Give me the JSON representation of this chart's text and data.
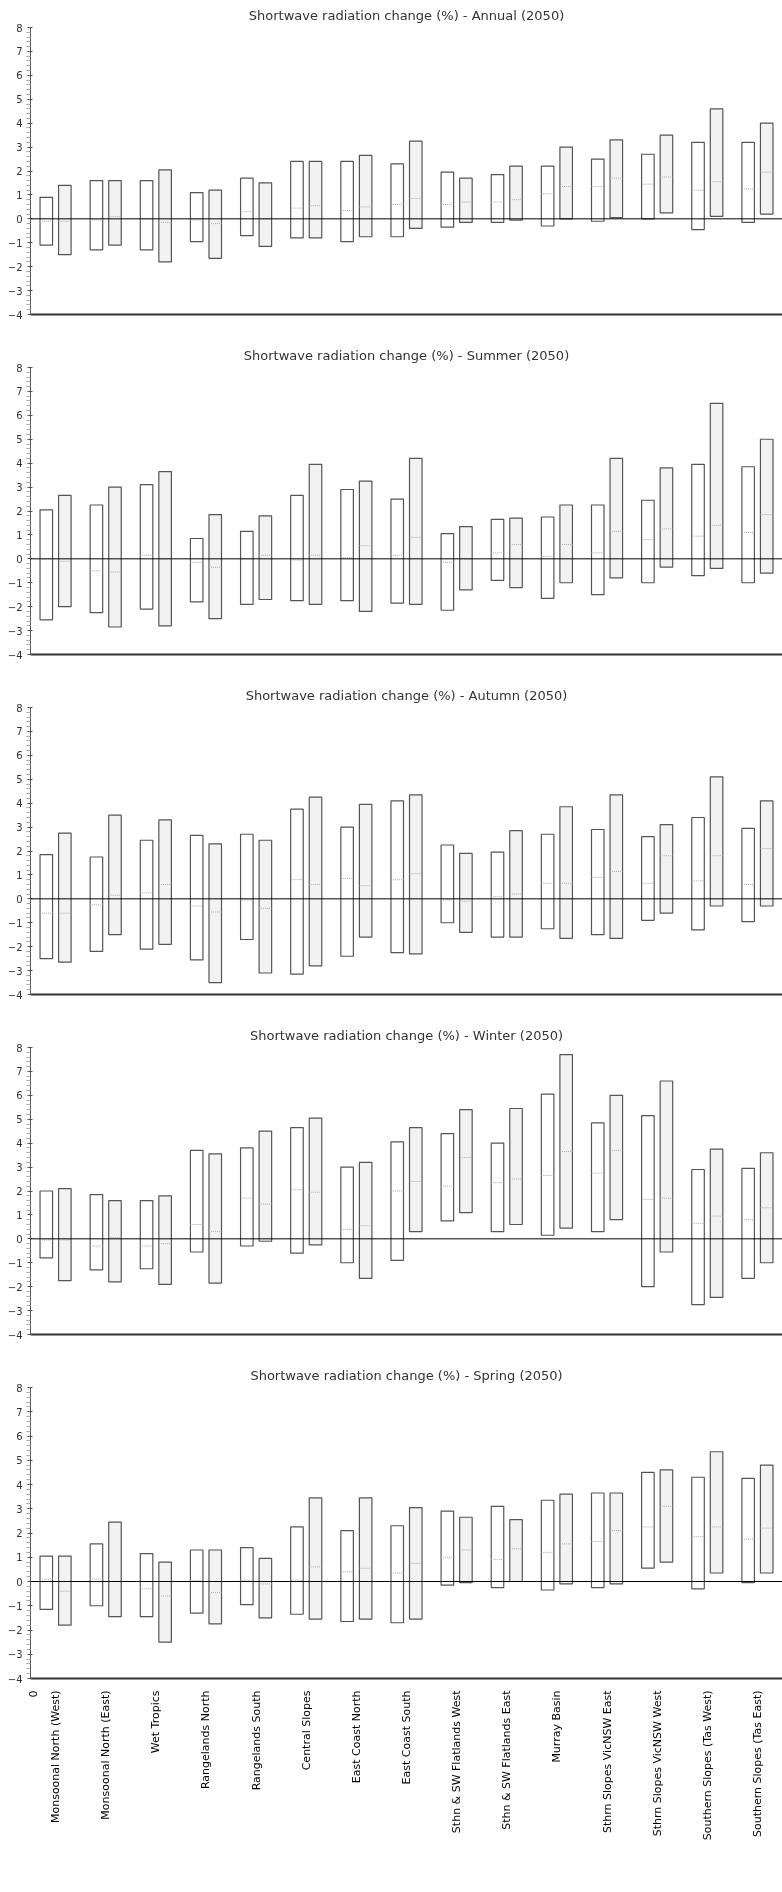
{
  "chart_data": [
    {
      "type": "box",
      "title": "Shortwave radiation change (%) - Annual (2050)",
      "tick_labels": "y",
      "categories": [
        null,
        null,
        null,
        null,
        null,
        null,
        null,
        null,
        null,
        null,
        null,
        null,
        null,
        null,
        null
      ],
      "ylim": [
        -4,
        8
      ],
      "yticks": [
        -4,
        -3,
        -2,
        -1,
        0,
        1,
        2,
        3,
        4,
        5,
        6,
        7,
        8
      ],
      "ref_lines": [
        {
          "axis": "y",
          "value": 0,
          "color": "#000000"
        }
      ],
      "series": [
        {
          "color": "#ffffff",
          "boxes": [
            {
              "low": -1.1,
              "q1": -1.1,
              "median": -0.1,
              "q3": 0.9,
              "high": 0.9
            },
            {
              "low": -1.3,
              "q1": -1.3,
              "median": -0.05,
              "q3": 1.6,
              "high": 1.6
            },
            {
              "low": -1.3,
              "q1": -1.3,
              "median": 0.0,
              "q3": 1.6,
              "high": 1.6
            },
            {
              "low": -0.95,
              "q1": -0.95,
              "median": -0.05,
              "q3": 1.1,
              "high": 1.1
            },
            {
              "low": -0.7,
              "q1": -0.7,
              "median": 0.3,
              "q3": 1.7,
              "high": 1.7
            },
            {
              "low": -0.8,
              "q1": -0.8,
              "median": 0.45,
              "q3": 2.4,
              "high": 2.4
            },
            {
              "low": -0.95,
              "q1": -0.95,
              "median": 0.35,
              "q3": 2.4,
              "high": 2.4
            },
            {
              "low": -0.75,
              "q1": -0.75,
              "median": 0.6,
              "q3": 2.3,
              "high": 2.3
            },
            {
              "low": -0.35,
              "q1": -0.35,
              "median": 0.6,
              "q3": 1.95,
              "high": 1.95
            },
            {
              "low": -0.15,
              "q1": -0.15,
              "median": 0.7,
              "q3": 1.85,
              "high": 1.85
            },
            {
              "low": -0.3,
              "q1": -0.3,
              "median": 1.05,
              "q3": 2.2,
              "high": 2.2
            },
            {
              "low": -0.1,
              "q1": -0.1,
              "median": 1.35,
              "q3": 2.5,
              "high": 2.5
            },
            {
              "low": 0.0,
              "q1": 0.0,
              "median": 1.45,
              "q3": 2.7,
              "high": 2.7
            },
            {
              "low": -0.45,
              "q1": -0.45,
              "median": 1.2,
              "q3": 3.2,
              "high": 3.2
            },
            {
              "low": -0.15,
              "q1": -0.15,
              "median": 1.25,
              "q3": 3.2,
              "high": 3.2
            }
          ]
        },
        {
          "color": "#f2f2f2",
          "boxes": [
            {
              "low": -1.5,
              "q1": -1.5,
              "median": -0.1,
              "q3": 1.4,
              "high": 1.4
            },
            {
              "low": -1.1,
              "q1": -1.1,
              "median": 0.1,
              "q3": 1.6,
              "high": 1.6
            },
            {
              "low": -1.8,
              "q1": -1.8,
              "median": -0.15,
              "q3": 2.05,
              "high": 2.05
            },
            {
              "low": -1.65,
              "q1": -1.65,
              "median": -0.2,
              "q3": 1.2,
              "high": 1.2
            },
            {
              "low": -1.15,
              "q1": -1.15,
              "median": 0.0,
              "q3": 1.5,
              "high": 1.5
            },
            {
              "low": -0.8,
              "q1": -0.8,
              "median": 0.55,
              "q3": 2.4,
              "high": 2.4
            },
            {
              "low": -0.75,
              "q1": -0.75,
              "median": 0.5,
              "q3": 2.65,
              "high": 2.65
            },
            {
              "low": -0.4,
              "q1": -0.4,
              "median": 0.85,
              "q3": 3.25,
              "high": 3.25
            },
            {
              "low": -0.15,
              "q1": -0.15,
              "median": 0.7,
              "q3": 1.7,
              "high": 1.7
            },
            {
              "low": -0.05,
              "q1": -0.05,
              "median": 0.8,
              "q3": 2.2,
              "high": 2.2
            },
            {
              "low": 0.0,
              "q1": 0.0,
              "median": 1.35,
              "q3": 3.0,
              "high": 3.0
            },
            {
              "low": 0.05,
              "q1": 0.05,
              "median": 1.7,
              "q3": 3.3,
              "high": 3.3
            },
            {
              "low": 0.25,
              "q1": 0.25,
              "median": 1.75,
              "q3": 3.5,
              "high": 3.5
            },
            {
              "low": 0.1,
              "q1": 0.1,
              "median": 1.55,
              "q3": 4.6,
              "high": 4.6
            },
            {
              "low": 0.2,
              "q1": 0.2,
              "median": 1.95,
              "q3": 4.0,
              "high": 4.0
            }
          ]
        }
      ]
    },
    {
      "type": "box",
      "title": "Shortwave radiation change (%) - Summer (2050)",
      "tick_labels": "y",
      "categories": [
        null,
        null,
        null,
        null,
        null,
        null,
        null,
        null,
        null,
        null,
        null,
        null,
        null,
        null,
        null
      ],
      "ylim": [
        -4,
        8
      ],
      "yticks": [
        -4,
        -3,
        -2,
        -1,
        0,
        1,
        2,
        3,
        4,
        5,
        6,
        7,
        8
      ],
      "ref_lines": [
        {
          "axis": "y",
          "value": 0,
          "color": "#000000"
        }
      ],
      "series": [
        {
          "color": "#ffffff",
          "boxes": [
            {
              "low": -2.55,
              "q1": -2.55,
              "median": 0.0,
              "q3": 2.05,
              "high": 2.05
            },
            {
              "low": -2.25,
              "q1": -2.25,
              "median": -0.5,
              "q3": 2.25,
              "high": 2.25
            },
            {
              "low": -2.1,
              "q1": -2.1,
              "median": 0.15,
              "q3": 3.1,
              "high": 3.1
            },
            {
              "low": -1.8,
              "q1": -1.8,
              "median": -0.15,
              "q3": 0.85,
              "high": 0.85
            },
            {
              "low": -1.9,
              "q1": -1.9,
              "median": 0.0,
              "q3": 1.15,
              "high": 1.15
            },
            {
              "low": -1.75,
              "q1": -1.75,
              "median": -0.05,
              "q3": 2.65,
              "high": 2.65
            },
            {
              "low": -1.75,
              "q1": -1.75,
              "median": 0.05,
              "q3": 2.9,
              "high": 2.9
            },
            {
              "low": -1.85,
              "q1": -1.85,
              "median": 0.15,
              "q3": 2.5,
              "high": 2.5
            },
            {
              "low": -2.15,
              "q1": -2.15,
              "median": -0.15,
              "q3": 1.05,
              "high": 1.05
            },
            {
              "low": -0.9,
              "q1": -0.9,
              "median": 0.25,
              "q3": 1.65,
              "high": 1.65
            },
            {
              "low": -1.65,
              "q1": -1.65,
              "median": 0.1,
              "q3": 1.75,
              "high": 1.75
            },
            {
              "low": -1.5,
              "q1": -1.5,
              "median": 0.25,
              "q3": 2.25,
              "high": 2.25
            },
            {
              "low": -1.0,
              "q1": -1.0,
              "median": 0.8,
              "q3": 2.45,
              "high": 2.45
            },
            {
              "low": -0.7,
              "q1": -0.7,
              "median": 0.95,
              "q3": 3.95,
              "high": 3.95
            },
            {
              "low": -1.0,
              "q1": -1.0,
              "median": 1.1,
              "q3": 3.85,
              "high": 3.85
            }
          ]
        },
        {
          "color": "#f2f2f2",
          "boxes": [
            {
              "low": -2.0,
              "q1": -2.0,
              "median": -0.1,
              "q3": 2.65,
              "high": 2.65
            },
            {
              "low": -2.85,
              "q1": -2.85,
              "median": -0.55,
              "q3": 3.0,
              "high": 3.0
            },
            {
              "low": -2.8,
              "q1": -2.8,
              "median": 0.0,
              "q3": 3.65,
              "high": 3.65
            },
            {
              "low": -2.5,
              "q1": -2.5,
              "median": -0.35,
              "q3": 1.85,
              "high": 1.85
            },
            {
              "low": -1.7,
              "q1": -1.7,
              "median": 0.15,
              "q3": 1.8,
              "high": 1.8
            },
            {
              "low": -1.9,
              "q1": -1.9,
              "median": 0.15,
              "q3": 3.95,
              "high": 3.95
            },
            {
              "low": -2.2,
              "q1": -2.2,
              "median": 0.55,
              "q3": 3.25,
              "high": 3.25
            },
            {
              "low": -1.9,
              "q1": -1.9,
              "median": 0.9,
              "q3": 4.2,
              "high": 4.2
            },
            {
              "low": -1.3,
              "q1": -1.3,
              "median": 0.0,
              "q3": 1.35,
              "high": 1.35
            },
            {
              "low": -1.2,
              "q1": -1.2,
              "median": 0.6,
              "q3": 1.7,
              "high": 1.7
            },
            {
              "low": -1.0,
              "q1": -1.0,
              "median": 0.6,
              "q3": 2.25,
              "high": 2.25
            },
            {
              "low": -0.8,
              "q1": -0.8,
              "median": 1.15,
              "q3": 4.2,
              "high": 4.2
            },
            {
              "low": -0.35,
              "q1": -0.35,
              "median": 1.25,
              "q3": 3.8,
              "high": 3.8
            },
            {
              "low": -0.4,
              "q1": -0.4,
              "median": 1.4,
              "q3": 6.5,
              "high": 6.5
            },
            {
              "low": -0.6,
              "q1": -0.6,
              "median": 1.85,
              "q3": 5.0,
              "high": 5.0
            }
          ]
        }
      ]
    },
    {
      "type": "box",
      "title": "Shortwave radiation change (%) - Autumn (2050)",
      "tick_labels": "y",
      "categories": [
        null,
        null,
        null,
        null,
        null,
        null,
        null,
        null,
        null,
        null,
        null,
        null,
        null,
        null,
        null
      ],
      "ylim": [
        -4,
        8
      ],
      "yticks": [
        -4,
        -3,
        -2,
        -1,
        0,
        1,
        2,
        3,
        4,
        5,
        6,
        7,
        8
      ],
      "ref_lines": [
        {
          "axis": "y",
          "value": 0,
          "color": "#000000"
        }
      ],
      "series": [
        {
          "color": "#ffffff",
          "boxes": [
            {
              "low": -2.5,
              "q1": -2.5,
              "median": -0.6,
              "q3": 1.85,
              "high": 1.85
            },
            {
              "low": -2.2,
              "q1": -2.2,
              "median": -0.25,
              "q3": 1.75,
              "high": 1.75
            },
            {
              "low": -2.1,
              "q1": -2.1,
              "median": 0.25,
              "q3": 2.45,
              "high": 2.45
            },
            {
              "low": -2.55,
              "q1": -2.55,
              "median": -0.3,
              "q3": 2.65,
              "high": 2.65
            },
            {
              "low": -1.7,
              "q1": -1.7,
              "median": -0.05,
              "q3": 2.7,
              "high": 2.7
            },
            {
              "low": -3.15,
              "q1": -3.15,
              "median": 0.8,
              "q3": 3.75,
              "high": 3.75
            },
            {
              "low": -2.4,
              "q1": -2.4,
              "median": 0.85,
              "q3": 3.0,
              "high": 3.0
            },
            {
              "low": -2.25,
              "q1": -2.25,
              "median": 0.8,
              "q3": 4.1,
              "high": 4.1
            },
            {
              "low": -1.0,
              "q1": -1.0,
              "median": -0.05,
              "q3": 2.25,
              "high": 2.25
            },
            {
              "low": -1.6,
              "q1": -1.6,
              "median": 0.1,
              "q3": 1.95,
              "high": 1.95
            },
            {
              "low": -1.25,
              "q1": -1.25,
              "median": 0.65,
              "q3": 2.7,
              "high": 2.7
            },
            {
              "low": -1.5,
              "q1": -1.5,
              "median": 0.9,
              "q3": 2.9,
              "high": 2.9
            },
            {
              "low": -0.9,
              "q1": -0.9,
              "median": 0.65,
              "q3": 2.6,
              "high": 2.6
            },
            {
              "low": -1.3,
              "q1": -1.3,
              "median": 0.75,
              "q3": 3.4,
              "high": 3.4
            },
            {
              "low": -0.95,
              "q1": -0.95,
              "median": 0.6,
              "q3": 2.95,
              "high": 2.95
            }
          ]
        },
        {
          "color": "#f2f2f2",
          "boxes": [
            {
              "low": -2.65,
              "q1": -2.65,
              "median": -0.6,
              "q3": 2.75,
              "high": 2.75
            },
            {
              "low": -1.5,
              "q1": -1.5,
              "median": 0.15,
              "q3": 3.5,
              "high": 3.5
            },
            {
              "low": -1.9,
              "q1": -1.9,
              "median": 0.6,
              "q3": 3.3,
              "high": 3.3
            },
            {
              "low": -3.5,
              "q1": -3.5,
              "median": -0.55,
              "q3": 2.3,
              "high": 2.3
            },
            {
              "low": -3.1,
              "q1": -3.1,
              "median": -0.4,
              "q3": 2.45,
              "high": 2.45
            },
            {
              "low": -2.8,
              "q1": -2.8,
              "median": 0.6,
              "q3": 4.25,
              "high": 4.25
            },
            {
              "low": -1.6,
              "q1": -1.6,
              "median": 0.55,
              "q3": 3.95,
              "high": 3.95
            },
            {
              "low": -2.3,
              "q1": -2.3,
              "median": 1.05,
              "q3": 4.35,
              "high": 4.35
            },
            {
              "low": -1.4,
              "q1": -1.4,
              "median": -0.1,
              "q3": 1.9,
              "high": 1.9
            },
            {
              "low": -1.6,
              "q1": -1.6,
              "median": 0.2,
              "q3": 2.85,
              "high": 2.85
            },
            {
              "low": -1.65,
              "q1": -1.65,
              "median": 0.65,
              "q3": 3.85,
              "high": 3.85
            },
            {
              "low": -1.65,
              "q1": -1.65,
              "median": 1.15,
              "q3": 4.35,
              "high": 4.35
            },
            {
              "low": -0.6,
              "q1": -0.6,
              "median": 1.8,
              "q3": 3.1,
              "high": 3.1
            },
            {
              "low": -0.3,
              "q1": -0.3,
              "median": 1.8,
              "q3": 5.1,
              "high": 5.1
            },
            {
              "low": -0.3,
              "q1": -0.3,
              "median": 2.1,
              "q3": 4.1,
              "high": 4.1
            }
          ]
        }
      ]
    },
    {
      "type": "box",
      "title": "Shortwave radiation change (%) - Winter (2050)",
      "tick_labels": "y",
      "categories": [
        null,
        null,
        null,
        null,
        null,
        null,
        null,
        null,
        null,
        null,
        null,
        null,
        null,
        null,
        null
      ],
      "ylim": [
        -4,
        8
      ],
      "yticks": [
        -4,
        -3,
        -2,
        -1,
        0,
        1,
        2,
        3,
        4,
        5,
        6,
        7,
        8
      ],
      "ref_lines": [
        {
          "axis": "y",
          "value": 0,
          "color": "#000000"
        }
      ],
      "series": [
        {
          "color": "#ffffff",
          "boxes": [
            {
              "low": -0.8,
              "q1": -0.8,
              "median": -0.05,
              "q3": 2.0,
              "high": 2.0
            },
            {
              "low": -1.3,
              "q1": -1.3,
              "median": -0.3,
              "q3": 1.85,
              "high": 1.85
            },
            {
              "low": -1.25,
              "q1": -1.25,
              "median": -0.3,
              "q3": 1.6,
              "high": 1.6
            },
            {
              "low": -0.55,
              "q1": -0.55,
              "median": 0.6,
              "q3": 3.7,
              "high": 3.7
            },
            {
              "low": -0.3,
              "q1": -0.3,
              "median": 1.7,
              "q3": 3.8,
              "high": 3.8
            },
            {
              "low": -0.6,
              "q1": -0.6,
              "median": 2.05,
              "q3": 4.65,
              "high": 4.65
            },
            {
              "low": -1.0,
              "q1": -1.0,
              "median": 0.4,
              "q3": 3.0,
              "high": 3.0
            },
            {
              "low": -0.9,
              "q1": -0.9,
              "median": 2.0,
              "q3": 4.05,
              "high": 4.05
            },
            {
              "low": 0.75,
              "q1": 0.75,
              "median": 2.2,
              "q3": 4.4,
              "high": 4.4
            },
            {
              "low": 0.3,
              "q1": 0.3,
              "median": 2.35,
              "q3": 4.0,
              "high": 4.0
            },
            {
              "low": 0.15,
              "q1": 0.15,
              "median": 2.65,
              "q3": 6.05,
              "high": 6.05
            },
            {
              "low": 0.3,
              "q1": 0.3,
              "median": 2.75,
              "q3": 4.85,
              "high": 4.85
            },
            {
              "low": -2.0,
              "q1": -2.0,
              "median": 1.65,
              "q3": 5.15,
              "high": 5.15
            },
            {
              "low": -2.75,
              "q1": -2.75,
              "median": 0.65,
              "q3": 2.9,
              "high": 2.9
            },
            {
              "low": -1.65,
              "q1": -1.65,
              "median": 0.8,
              "q3": 2.95,
              "high": 2.95
            }
          ]
        },
        {
          "color": "#f2f2f2",
          "boxes": [
            {
              "low": -1.75,
              "q1": -1.75,
              "median": -0.05,
              "q3": 2.1,
              "high": 2.1
            },
            {
              "low": -1.8,
              "q1": -1.8,
              "median": 0.05,
              "q3": 1.6,
              "high": 1.6
            },
            {
              "low": -1.9,
              "q1": -1.9,
              "median": -0.2,
              "q3": 1.8,
              "high": 1.8
            },
            {
              "low": -1.85,
              "q1": -1.85,
              "median": 0.3,
              "q3": 3.55,
              "high": 3.55
            },
            {
              "low": -0.1,
              "q1": -0.1,
              "median": 1.45,
              "q3": 4.5,
              "high": 4.5
            },
            {
              "low": -0.25,
              "q1": -0.25,
              "median": 1.95,
              "q3": 5.05,
              "high": 5.05
            },
            {
              "low": -1.65,
              "q1": -1.65,
              "median": 0.55,
              "q3": 3.2,
              "high": 3.2
            },
            {
              "low": 0.3,
              "q1": 0.3,
              "median": 2.4,
              "q3": 4.65,
              "high": 4.65
            },
            {
              "low": 1.1,
              "q1": 1.1,
              "median": 3.4,
              "q3": 5.4,
              "high": 5.4
            },
            {
              "low": 0.6,
              "q1": 0.6,
              "median": 2.5,
              "q3": 5.45,
              "high": 5.45
            },
            {
              "low": 0.45,
              "q1": 0.45,
              "median": 3.65,
              "q3": 7.7,
              "high": 7.7
            },
            {
              "low": 0.8,
              "q1": 0.8,
              "median": 3.7,
              "q3": 6.0,
              "high": 6.0
            },
            {
              "low": -0.55,
              "q1": -0.55,
              "median": 1.7,
              "q3": 6.6,
              "high": 6.6
            },
            {
              "low": -2.45,
              "q1": -2.45,
              "median": 0.95,
              "q3": 3.75,
              "high": 3.75
            },
            {
              "low": -1.0,
              "q1": -1.0,
              "median": 1.3,
              "q3": 3.6,
              "high": 3.6
            }
          ]
        }
      ]
    },
    {
      "type": "box",
      "title": "Shortwave radiation change (%) - Spring (2050)",
      "annotations": [
        "0"
      ],
      "categories": [
        "Monsoonal North (West)",
        "Monsoonal North (East)",
        "Wet Tropics",
        "Rangelands North",
        "Rangelands South",
        "Central Slopes",
        "East Coast North",
        "East Coast South",
        "Sthn & SW Flatlands West",
        "Sthn & SW Flatlands East",
        "Murray Basin",
        "Sthrn Slopes VicNSW East",
        "Sthrn Slopes VicNSW West",
        "Southern Slopes (Tas West)",
        "Southern Slopes (Tas East)"
      ],
      "ylim": [
        -4,
        8
      ],
      "yticks": [
        -4,
        -3,
        -2,
        -1,
        0,
        1,
        2,
        3,
        4,
        5,
        6,
        7,
        8
      ],
      "ref_lines": [
        {
          "axis": "y",
          "value": 0,
          "color": "#000000"
        }
      ],
      "series": [
        {
          "color": "#ffffff",
          "boxes": [
            {
              "low": -1.15,
              "q1": -1.15,
              "median": 0.1,
              "q3": 1.05,
              "high": 1.05
            },
            {
              "low": -1.0,
              "q1": -1.0,
              "median": 0.1,
              "q3": 1.55,
              "high": 1.55
            },
            {
              "low": -1.45,
              "q1": -1.45,
              "median": -0.3,
              "q3": 1.15,
              "high": 1.15
            },
            {
              "low": -1.3,
              "q1": -1.3,
              "median": 0.05,
              "q3": 1.3,
              "high": 1.3
            },
            {
              "low": -0.95,
              "q1": -0.95,
              "median": 0.05,
              "q3": 1.4,
              "high": 1.4
            },
            {
              "low": -1.35,
              "q1": -1.35,
              "median": 0.05,
              "q3": 2.25,
              "high": 2.25
            },
            {
              "low": -1.65,
              "q1": -1.65,
              "median": 0.4,
              "q3": 2.1,
              "high": 2.1
            },
            {
              "low": -1.7,
              "q1": -1.7,
              "median": 0.35,
              "q3": 2.3,
              "high": 2.3
            },
            {
              "low": -0.15,
              "q1": -0.15,
              "median": 1.0,
              "q3": 2.9,
              "high": 2.9
            },
            {
              "low": -0.25,
              "q1": -0.25,
              "median": 0.9,
              "q3": 3.1,
              "high": 3.1
            },
            {
              "low": -0.35,
              "q1": -0.35,
              "median": 1.2,
              "q3": 3.35,
              "high": 3.35
            },
            {
              "low": -0.25,
              "q1": -0.25,
              "median": 1.65,
              "q3": 3.65,
              "high": 3.65
            },
            {
              "low": 0.55,
              "q1": 0.55,
              "median": 2.25,
              "q3": 4.5,
              "high": 4.5
            },
            {
              "low": -0.3,
              "q1": -0.3,
              "median": 1.85,
              "q3": 4.3,
              "high": 4.3
            },
            {
              "low": -0.05,
              "q1": -0.05,
              "median": 1.75,
              "q3": 4.25,
              "high": 4.25
            }
          ]
        },
        {
          "color": "#f2f2f2",
          "boxes": [
            {
              "low": -1.8,
              "q1": -1.8,
              "median": -0.4,
              "q3": 1.05,
              "high": 1.05
            },
            {
              "low": -1.45,
              "q1": -1.45,
              "median": 0.0,
              "q3": 2.45,
              "high": 2.45
            },
            {
              "low": -2.5,
              "q1": -2.5,
              "median": -0.6,
              "q3": 0.8,
              "high": 0.8
            },
            {
              "low": -1.75,
              "q1": -1.75,
              "median": -0.45,
              "q3": 1.3,
              "high": 1.3
            },
            {
              "low": -1.5,
              "q1": -1.5,
              "median": -0.1,
              "q3": 0.95,
              "high": 0.95
            },
            {
              "low": -1.55,
              "q1": -1.55,
              "median": 0.6,
              "q3": 3.45,
              "high": 3.45
            },
            {
              "low": -1.55,
              "q1": -1.55,
              "median": 0.55,
              "q3": 3.45,
              "high": 3.45
            },
            {
              "low": -1.55,
              "q1": -1.55,
              "median": 0.75,
              "q3": 3.05,
              "high": 3.05
            },
            {
              "low": -0.05,
              "q1": -0.05,
              "median": 1.3,
              "q3": 2.65,
              "high": 2.65
            },
            {
              "low": 0.0,
              "q1": 0.0,
              "median": 1.35,
              "q3": 2.55,
              "high": 2.55
            },
            {
              "low": -0.1,
              "q1": -0.1,
              "median": 1.55,
              "q3": 3.6,
              "high": 3.6
            },
            {
              "low": -0.1,
              "q1": -0.1,
              "median": 2.1,
              "q3": 3.65,
              "high": 3.65
            },
            {
              "low": 0.8,
              "q1": 0.8,
              "median": 3.1,
              "q3": 4.6,
              "high": 4.6
            },
            {
              "low": 0.35,
              "q1": 0.35,
              "median": 2.25,
              "q3": 5.35,
              "high": 5.35
            },
            {
              "low": 0.35,
              "q1": 0.35,
              "median": 2.2,
              "q3": 4.8,
              "high": 4.8
            }
          ]
        }
      ]
    }
  ]
}
